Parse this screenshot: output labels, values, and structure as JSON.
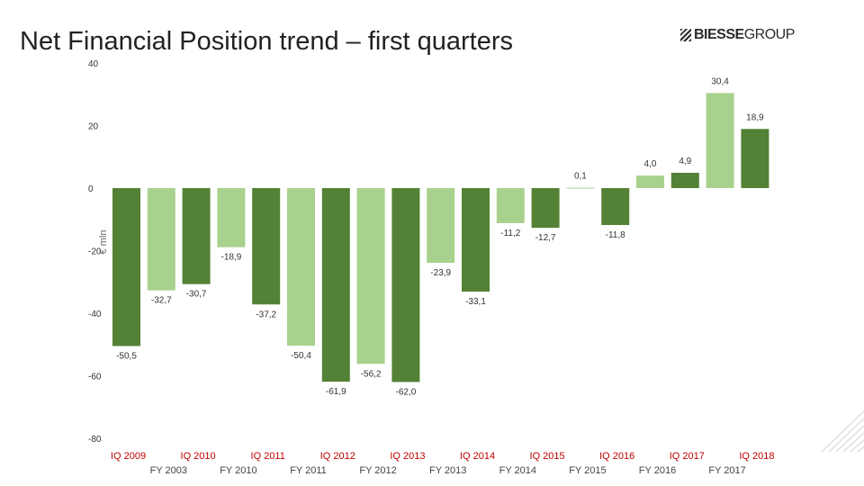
{
  "header": {
    "title": "Net Financial Position trend – first quarters",
    "logo_bold": "BIESSE",
    "logo_light": "GROUP"
  },
  "colors": {
    "dark": "#538135",
    "light": "#a9d18e",
    "category_label": "#c00000",
    "fiscal_label": "#444444"
  },
  "chart_data": {
    "type": "bar",
    "title": "Net Financial Position trend – first quarters",
    "ylabel": "€ mln",
    "ylim": [
      -80,
      40
    ],
    "yticks": [
      40,
      20,
      0,
      -20,
      -40,
      -60,
      -80
    ],
    "grid": false,
    "legend": "none",
    "bars": [
      {
        "label": "-50,5",
        "value": -50.5,
        "shade": "dark"
      },
      {
        "label": "-32,7",
        "value": -32.7,
        "shade": "light"
      },
      {
        "label": "-30,7",
        "value": -30.7,
        "shade": "dark"
      },
      {
        "label": "-18,9",
        "value": -18.9,
        "shade": "light"
      },
      {
        "label": "-37,2",
        "value": -37.2,
        "shade": "dark"
      },
      {
        "label": "-50,4",
        "value": -50.4,
        "shade": "light"
      },
      {
        "label": "-61,9",
        "value": -61.9,
        "shade": "dark"
      },
      {
        "label": "-56,2",
        "value": -56.2,
        "shade": "light"
      },
      {
        "label": "-62,0",
        "value": -62.0,
        "shade": "dark"
      },
      {
        "label": "-23,9",
        "value": -23.9,
        "shade": "light"
      },
      {
        "label": "-33,1",
        "value": -33.1,
        "shade": "dark"
      },
      {
        "label": "-11,2",
        "value": -11.2,
        "shade": "light"
      },
      {
        "label": "-12,7",
        "value": -12.7,
        "shade": "dark"
      },
      {
        "label": "0,1",
        "value": 0.1,
        "shade": "light"
      },
      {
        "label": "-11,8",
        "value": -11.8,
        "shade": "dark"
      },
      {
        "label": "4,0",
        "value": 4.0,
        "shade": "light"
      },
      {
        "label": "4,9",
        "value": 4.9,
        "shade": "dark"
      },
      {
        "label": "30,4",
        "value": 30.4,
        "shade": "light"
      },
      {
        "label": "18,9",
        "value": 18.9,
        "shade": "dark"
      }
    ],
    "quarter_labels": [
      "IQ 2009",
      "IQ 2010",
      "IQ 2011",
      "IQ 2012",
      "IQ 2013",
      "IQ 2014",
      "IQ 2015",
      "IQ 2016",
      "IQ 2017",
      "IQ 2018"
    ],
    "fiscal_year_labels": [
      "FY 2003",
      "FY 2010",
      "FY 2011",
      "FY 2012",
      "FY 2013",
      "FY 2014",
      "FY 2015",
      "FY 2016",
      "FY 2017"
    ]
  }
}
